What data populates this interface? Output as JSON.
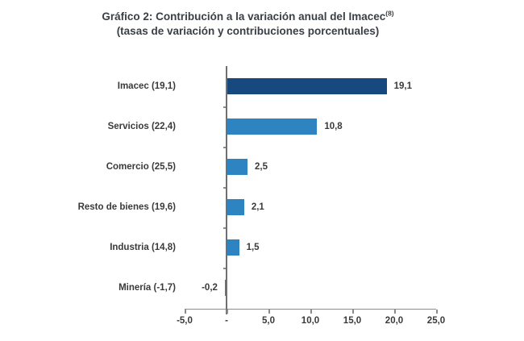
{
  "title": {
    "line1": "Gráfico 2: Contribución a la variación anual del Imacec",
    "superscript": "(8)",
    "line2": "(tasas de variación y contribuciones porcentuales)"
  },
  "chart_data": {
    "type": "bar",
    "orientation": "horizontal",
    "title": "Gráfico 2: Contribución a la variación anual del Imacec(8)",
    "subtitle": "(tasas de variación y contribuciones porcentuales)",
    "categories": [
      "Imacec (19,1)",
      "Servicios (22,4)",
      "Comercio (25,5)",
      "Resto de bienes (19,6)",
      "Industria (14,8)",
      "Minería (-1,7)"
    ],
    "values": [
      19.1,
      10.8,
      2.5,
      2.1,
      1.5,
      -0.2
    ],
    "value_labels": [
      "19,1",
      "10,8",
      "2,5",
      "2,1",
      "1,5",
      "-0,2"
    ],
    "bar_colors": [
      "#17497E",
      "#2E84C0",
      "#2E84C0",
      "#2E84C0",
      "#2E84C0",
      "#2E84C0"
    ],
    "x_ticks": [
      -5,
      0,
      5,
      10,
      15,
      20,
      25
    ],
    "x_tick_labels": [
      "-5,0",
      "-",
      "5,0",
      "10,0",
      "15,0",
      "20,0",
      "25,0"
    ],
    "xlim": [
      -5,
      25
    ],
    "xlabel": "",
    "ylabel": "",
    "grid": false,
    "legend": false
  },
  "colors": {
    "bar_dark": "#17497E",
    "bar_light": "#2E84C0",
    "axis": "#8c8c8c",
    "zero_line": "#6f6f6f",
    "text": "#3a3a3a",
    "background": "#ffffff"
  }
}
